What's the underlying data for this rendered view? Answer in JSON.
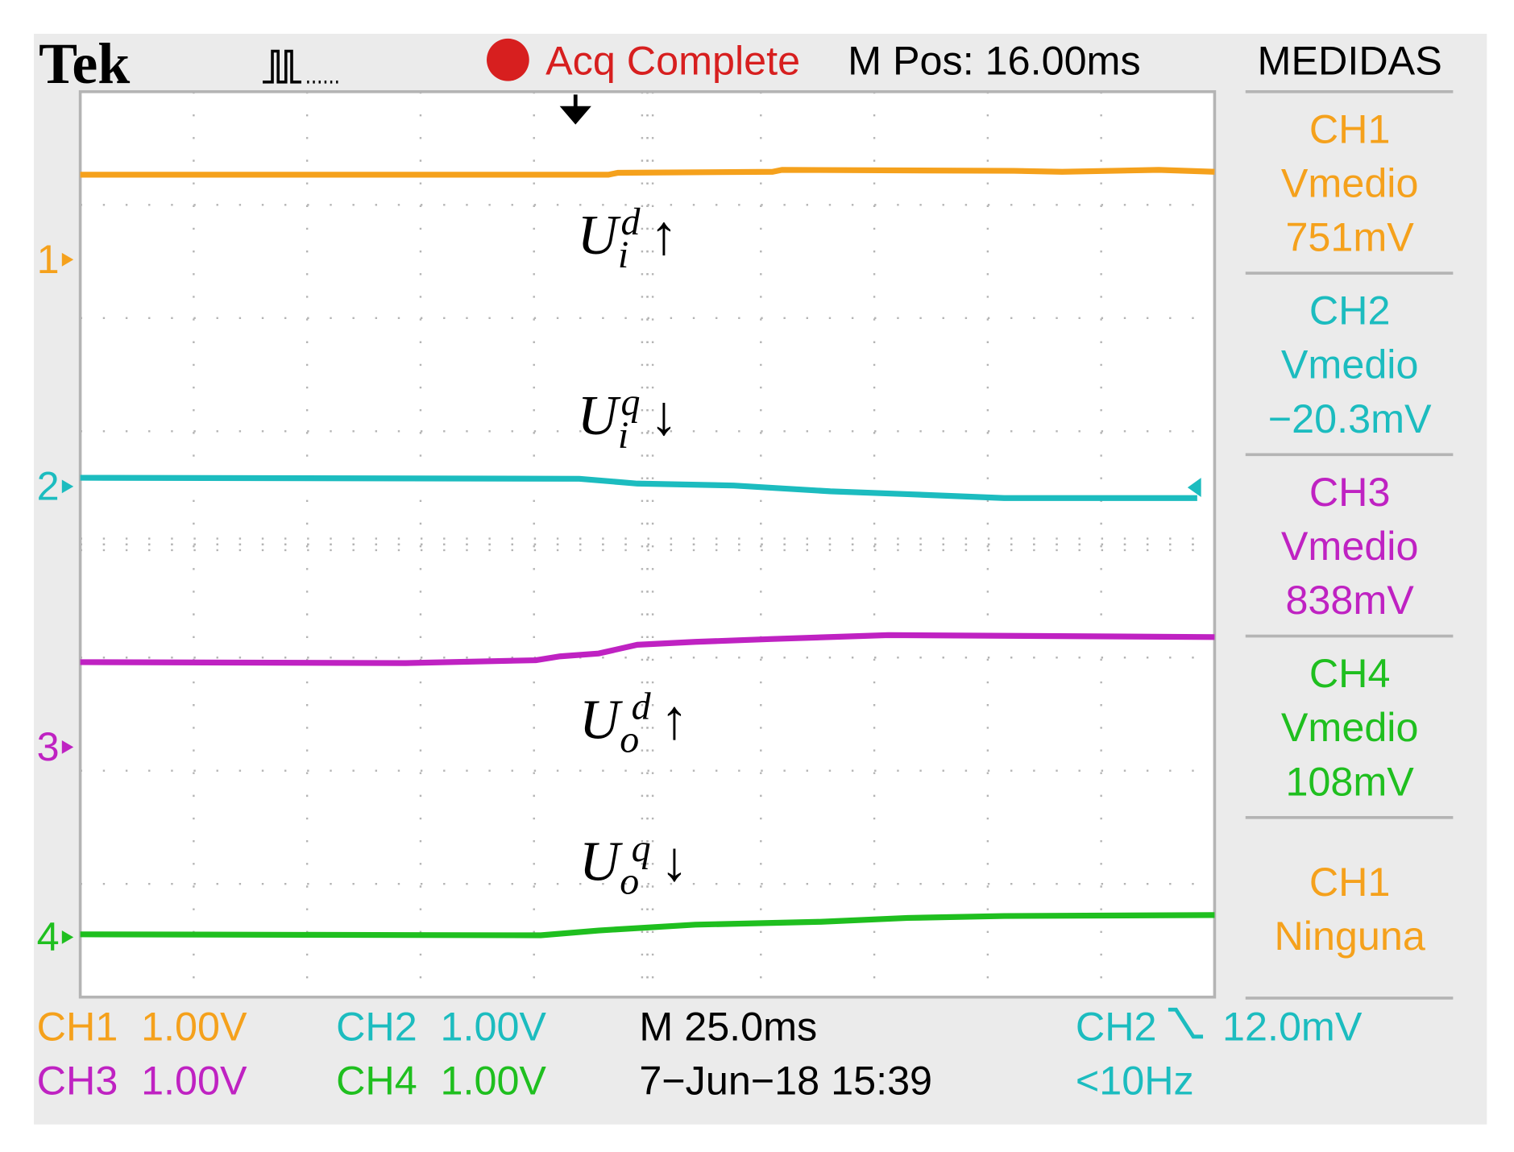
{
  "header": {
    "brand": "Tek",
    "status": "Acq Complete",
    "position": "M Pos: 16.00ms",
    "menu": "MEDIDAS"
  },
  "channel_markers": [
    "1",
    "2",
    "3",
    "4"
  ],
  "annotations": [
    {
      "base": "U",
      "sub": "i",
      "sup": "d",
      "arrow": "↑"
    },
    {
      "base": "U",
      "sub": "i",
      "sup": "q",
      "arrow": "↓"
    },
    {
      "base": "U",
      "sub": "o",
      "sup": "d",
      "arrow": "↑"
    },
    {
      "base": "U",
      "sub": "o",
      "sup": "q",
      "arrow": "↓"
    }
  ],
  "measurements": [
    {
      "channel": "CH1",
      "label": "Vmedio",
      "value": "751mV"
    },
    {
      "channel": "CH2",
      "label": "Vmedio",
      "value": "−20.3mV"
    },
    {
      "channel": "CH3",
      "label": "Vmedio",
      "value": "838mV"
    },
    {
      "channel": "CH4",
      "label": "Vmedio",
      "value": "108mV"
    },
    {
      "channel": "CH1",
      "label": "Ninguna"
    }
  ],
  "footer": {
    "scales": [
      {
        "channel": "CH1",
        "value": "1.00V"
      },
      {
        "channel": "CH2",
        "value": "1.00V"
      },
      {
        "channel": "CH3",
        "value": "1.00V"
      },
      {
        "channel": "CH4",
        "value": "1.00V"
      }
    ],
    "timebase": "M 25.0ms",
    "date": "7−Jun−18 15:39",
    "trigger_source": "CH2",
    "trigger_level": "12.0mV",
    "frequency": "<10Hz"
  }
}
